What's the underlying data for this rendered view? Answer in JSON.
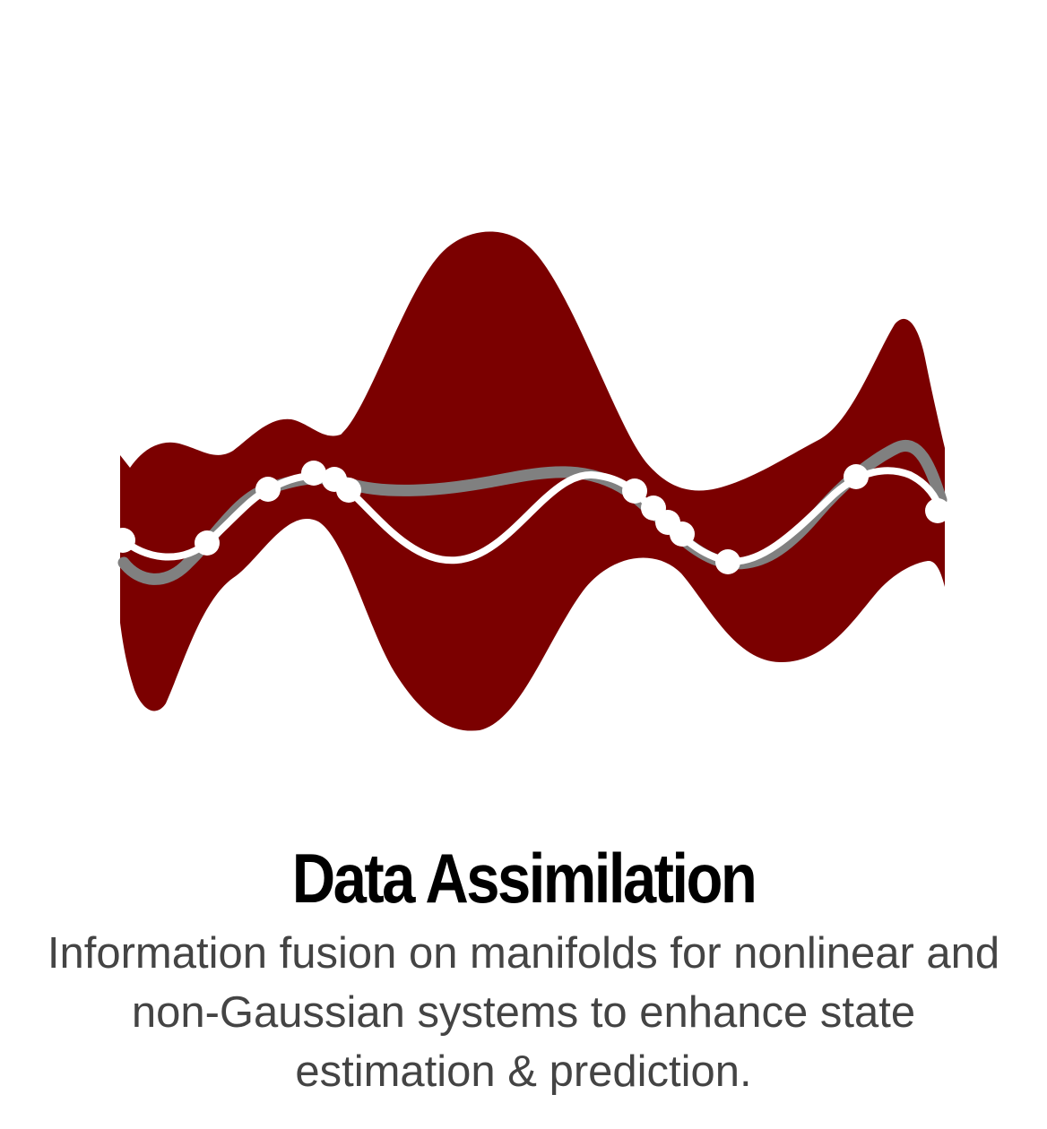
{
  "card": {
    "title": "Data Assimilation",
    "description": "Information fusion on manifolds for nonlinear and non-Gaussian systems to enhance state estimation & prediction."
  },
  "illustration": {
    "kind": "uncertainty band with estimate and truth curves and observation points",
    "colors": {
      "band": "#7b0000",
      "truth_curve": "#808080",
      "estimate_curve": "#ffffff",
      "observations": "#ffffff"
    }
  }
}
